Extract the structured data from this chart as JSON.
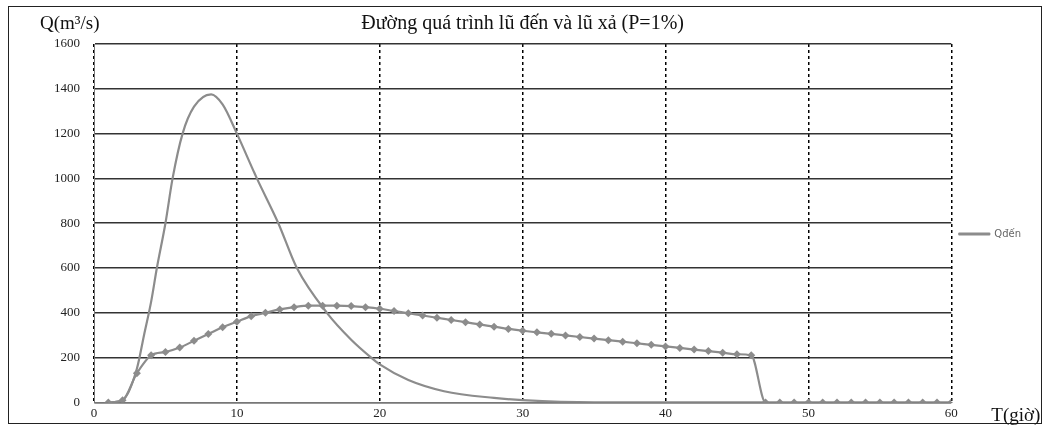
{
  "chart_data": {
    "type": "line",
    "title": "Đường quá trình lũ đến và lũ xả (P=1%)",
    "xlabel": "T(giờ)",
    "ylabel": "Q(m³/s)",
    "xlim": [
      0,
      60
    ],
    "xticks": [
      0,
      10,
      20,
      30,
      40,
      50,
      60
    ],
    "ylim": [
      0,
      1600
    ],
    "yticks": [
      0,
      200,
      400,
      600,
      800,
      1000,
      1200,
      1400,
      1600
    ],
    "grid": true,
    "legend": "right",
    "series": [
      {
        "name": "Qđến",
        "color": "#8c8c8c",
        "marker": "none",
        "x": [
          1,
          2,
          3,
          3.5,
          4,
          4.4,
          5,
          5.5,
          6.2,
          7,
          8.2,
          9,
          10,
          11.4,
          12.9,
          14.2,
          16.3,
          18,
          19.4,
          20,
          22,
          24.5,
          28,
          30,
          35,
          40,
          47
        ],
        "values": [
          0,
          10,
          150,
          300,
          450,
          600,
          800,
          1000,
          1200,
          1320,
          1375,
          1330,
          1200,
          1000,
          800,
          600,
          400,
          280,
          200,
          170,
          100,
          50,
          20,
          10,
          0,
          0,
          0
        ]
      },
      {
        "color": "#8c8c8c",
        "marker": "diamond",
        "x": [
          1,
          2,
          3,
          4,
          5,
          6,
          7,
          8,
          9,
          10,
          11,
          12,
          13,
          14,
          15,
          16,
          17,
          18,
          19,
          20,
          21,
          22,
          23,
          24,
          25,
          26,
          27,
          28,
          29,
          30,
          31,
          32,
          33,
          34,
          35,
          36,
          37,
          38,
          39,
          40,
          41,
          42,
          43,
          44,
          45,
          46,
          47,
          48,
          49,
          50,
          51,
          52,
          53,
          54,
          55,
          56,
          57,
          58,
          59,
          60
        ],
        "values": [
          0,
          10,
          130,
          210,
          225,
          245,
          275,
          305,
          335,
          360,
          385,
          400,
          415,
          425,
          432,
          432,
          432,
          430,
          425,
          418,
          408,
          398,
          388,
          378,
          368,
          358,
          348,
          338,
          328,
          320,
          313,
          306,
          299,
          292,
          285,
          278,
          271,
          264,
          257,
          250,
          243,
          236,
          229,
          222,
          215,
          210,
          0,
          0,
          0,
          0,
          0,
          0,
          0,
          0,
          0,
          0,
          0,
          0,
          0,
          0
        ]
      }
    ]
  }
}
